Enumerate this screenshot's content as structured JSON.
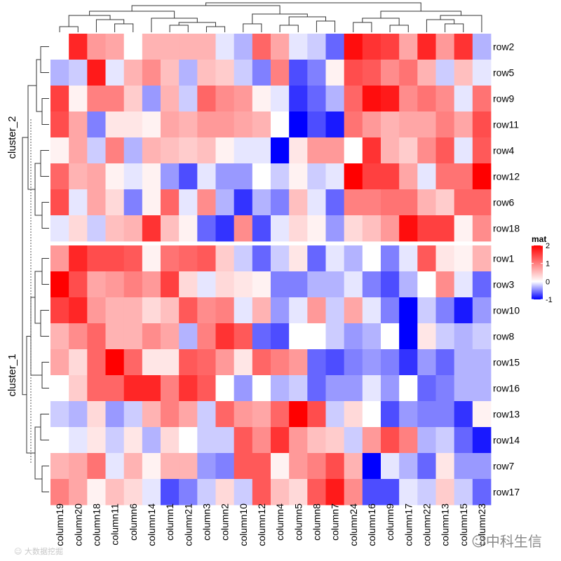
{
  "chart_data": {
    "type": "heatmap",
    "row_splits": [
      "cluster_2",
      "cluster_1"
    ],
    "rows": [
      {
        "label": "row2",
        "split": "cluster_2"
      },
      {
        "label": "row5",
        "split": "cluster_2"
      },
      {
        "label": "row9",
        "split": "cluster_2"
      },
      {
        "label": "row11",
        "split": "cluster_2"
      },
      {
        "label": "row4",
        "split": "cluster_2"
      },
      {
        "label": "row12",
        "split": "cluster_2"
      },
      {
        "label": "row6",
        "split": "cluster_2"
      },
      {
        "label": "row18",
        "split": "cluster_2"
      },
      {
        "label": "row1",
        "split": "cluster_1"
      },
      {
        "label": "row3",
        "split": "cluster_1"
      },
      {
        "label": "row10",
        "split": "cluster_1"
      },
      {
        "label": "row8",
        "split": "cluster_1"
      },
      {
        "label": "row15",
        "split": "cluster_1"
      },
      {
        "label": "row16",
        "split": "cluster_1"
      },
      {
        "label": "row13",
        "split": "cluster_1"
      },
      {
        "label": "row14",
        "split": "cluster_1"
      },
      {
        "label": "row7",
        "split": "cluster_1"
      },
      {
        "label": "row17",
        "split": "cluster_1"
      }
    ],
    "columns": [
      "column19",
      "column20",
      "column18",
      "column11",
      "column6",
      "column14",
      "column1",
      "column21",
      "column3",
      "column2",
      "column10",
      "column12",
      "column4",
      "column5",
      "column8",
      "column7",
      "column24",
      "column16",
      "column9",
      "column17",
      "column22",
      "column13",
      "column15",
      "column23"
    ],
    "values": [
      [
        0.0,
        1.7,
        0.8,
        0.7,
        0.0,
        0.6,
        0.6,
        0.6,
        0.6,
        -0.1,
        -0.3,
        1.2,
        0.7,
        -0.1,
        -0.2,
        -0.6,
        1.9,
        1.6,
        1.5,
        0.7,
        1.7,
        0.8,
        1.6,
        -0.3
      ],
      [
        -0.3,
        -0.2,
        1.8,
        -0.1,
        0.6,
        0.9,
        0.5,
        -0.3,
        0.5,
        0.4,
        -0.2,
        -0.5,
        1.0,
        -0.7,
        -0.5,
        0.1,
        1.4,
        1.3,
        0.9,
        1.1,
        0.6,
        -0.2,
        0.5,
        -0.1
      ],
      [
        1.5,
        0.1,
        1.0,
        1.0,
        0.4,
        -0.4,
        0.6,
        -0.2,
        1.2,
        0.9,
        0.8,
        0.1,
        -0.1,
        -0.8,
        -0.6,
        -0.3,
        1.2,
        1.9,
        1.8,
        0.9,
        1.1,
        0.9,
        -0.1,
        1.1
      ],
      [
        1.4,
        0.7,
        -0.5,
        0.2,
        0.2,
        0.1,
        0.7,
        0.6,
        0.8,
        0.8,
        0.7,
        0.6,
        0.0,
        -1.0,
        -0.7,
        -0.9,
        1.1,
        0.8,
        0.6,
        0.7,
        0.7,
        1.0,
        0.7,
        1.4
      ],
      [
        0.1,
        0.7,
        -0.2,
        1.0,
        -0.3,
        0.6,
        0.5,
        0.4,
        0.5,
        0.1,
        -0.1,
        -0.1,
        -1.0,
        0.2,
        0.8,
        0.8,
        0.0,
        1.6,
        0.6,
        0.4,
        0.9,
        1.3,
        -0.1,
        1.3
      ],
      [
        1.2,
        0.6,
        0.7,
        0.1,
        -0.1,
        0.1,
        -0.4,
        -0.7,
        -0.1,
        -0.4,
        -0.4,
        0.0,
        -0.2,
        0.1,
        -0.2,
        -0.1,
        2.0,
        1.5,
        1.5,
        0.7,
        -0.1,
        1.1,
        1.1,
        2.0
      ],
      [
        1.4,
        -0.1,
        0.7,
        0.3,
        -0.5,
        0.1,
        1.2,
        -0.1,
        0.9,
        -0.3,
        -0.8,
        -0.3,
        -0.5,
        0.5,
        -0.1,
        -0.6,
        1.0,
        1.0,
        1.1,
        1.1,
        0.6,
        0.4,
        1.2,
        1.2
      ],
      [
        -0.1,
        0.3,
        -0.2,
        0.5,
        0.6,
        1.6,
        0.5,
        0.1,
        -0.6,
        -0.8,
        0.9,
        -0.7,
        -0.1,
        0.3,
        0.1,
        -0.4,
        0.3,
        0.5,
        0.8,
        1.9,
        1.5,
        1.5,
        0.1,
        0.9
      ],
      [
        0.8,
        1.7,
        1.4,
        1.4,
        1.3,
        0.1,
        1.1,
        1.2,
        1.3,
        0.4,
        -0.2,
        -0.6,
        -0.2,
        0.2,
        -0.6,
        -0.1,
        -0.3,
        0.0,
        -0.5,
        -0.1,
        1.3,
        0.2,
        0.1,
        0.6
      ],
      [
        2.0,
        1.4,
        0.7,
        0.8,
        1.0,
        0.8,
        1.5,
        0.3,
        -0.1,
        0.3,
        0.2,
        0.1,
        -0.5,
        -0.5,
        -0.3,
        -0.3,
        -0.1,
        -0.5,
        -0.7,
        -0.3,
        0.0,
        0.9,
        -0.1,
        -0.6
      ],
      [
        1.5,
        1.7,
        0.8,
        0.6,
        0.6,
        0.3,
        0.5,
        1.3,
        0.9,
        1.0,
        -0.1,
        0.6,
        -0.4,
        -0.1,
        0.8,
        -0.2,
        0.7,
        -0.1,
        -0.5,
        -1.0,
        -0.2,
        -0.5,
        -0.9,
        -0.4
      ],
      [
        0.6,
        0.9,
        1.2,
        0.6,
        0.6,
        0.9,
        0.7,
        -0.3,
        1.0,
        1.6,
        1.3,
        -0.6,
        -0.7,
        0.0,
        0.0,
        -0.2,
        -0.4,
        -0.3,
        0.0,
        -1.0,
        0.2,
        -0.2,
        -0.3,
        -0.2
      ],
      [
        0.7,
        0.3,
        1.2,
        2.0,
        1.2,
        0.2,
        0.2,
        1.3,
        1.2,
        0.8,
        0.2,
        1.2,
        1.0,
        0.8,
        -0.6,
        -0.7,
        -0.5,
        -0.4,
        -0.5,
        -0.8,
        -0.4,
        -0.6,
        -0.3,
        -0.3
      ],
      [
        0.0,
        0.4,
        1.2,
        1.2,
        1.7,
        1.7,
        1.0,
        1.6,
        1.3,
        0.0,
        -0.4,
        0.0,
        -0.3,
        -0.2,
        -0.6,
        -0.4,
        -0.4,
        -0.1,
        -0.4,
        0.0,
        -0.6,
        -0.5,
        -0.3,
        -0.3
      ],
      [
        -0.2,
        -0.3,
        0.3,
        -0.4,
        -0.2,
        0.6,
        1.0,
        0.7,
        -0.2,
        1.2,
        0.8,
        0.7,
        1.2,
        2.0,
        1.4,
        -0.2,
        0.3,
        0.0,
        -0.7,
        -0.4,
        -0.5,
        -0.5,
        -0.8,
        0.1
      ],
      [
        0.0,
        -0.1,
        0.2,
        -0.2,
        0.2,
        -0.3,
        0.3,
        0.0,
        -0.2,
        -0.2,
        1.3,
        0.9,
        1.6,
        0.8,
        0.5,
        0.4,
        -0.2,
        0.8,
        1.4,
        1.0,
        -0.3,
        -0.2,
        -0.6,
        -0.9
      ],
      [
        0.6,
        0.7,
        1.1,
        -0.1,
        0.6,
        0.1,
        0.6,
        0.6,
        -0.4,
        -0.5,
        1.3,
        1.3,
        0.1,
        0.8,
        1.0,
        1.4,
        0.6,
        -1.0,
        -0.1,
        -0.3,
        -0.6,
        0.2,
        -0.4,
        -0.4
      ],
      [
        1.0,
        0.7,
        0.1,
        0.5,
        0.3,
        -0.1,
        -0.7,
        -0.5,
        -0.2,
        0.3,
        -0.2,
        1.3,
        0.5,
        0.3,
        1.3,
        1.8,
        0.9,
        -0.7,
        -0.7,
        -0.1,
        -0.2,
        0.4,
        -0.2,
        -0.6
      ]
    ],
    "legend": {
      "title": "mat",
      "ticks": [
        2,
        1,
        0,
        -1
      ],
      "position": "right"
    },
    "color_scale": {
      "min": -1,
      "mid": 0,
      "max": 2,
      "low_color": "#0000FF",
      "mid_color": "#FFFFFF",
      "high_color": "#FF0000"
    }
  },
  "watermarks": {
    "left": "大数据挖掘",
    "right": "中科生信"
  }
}
